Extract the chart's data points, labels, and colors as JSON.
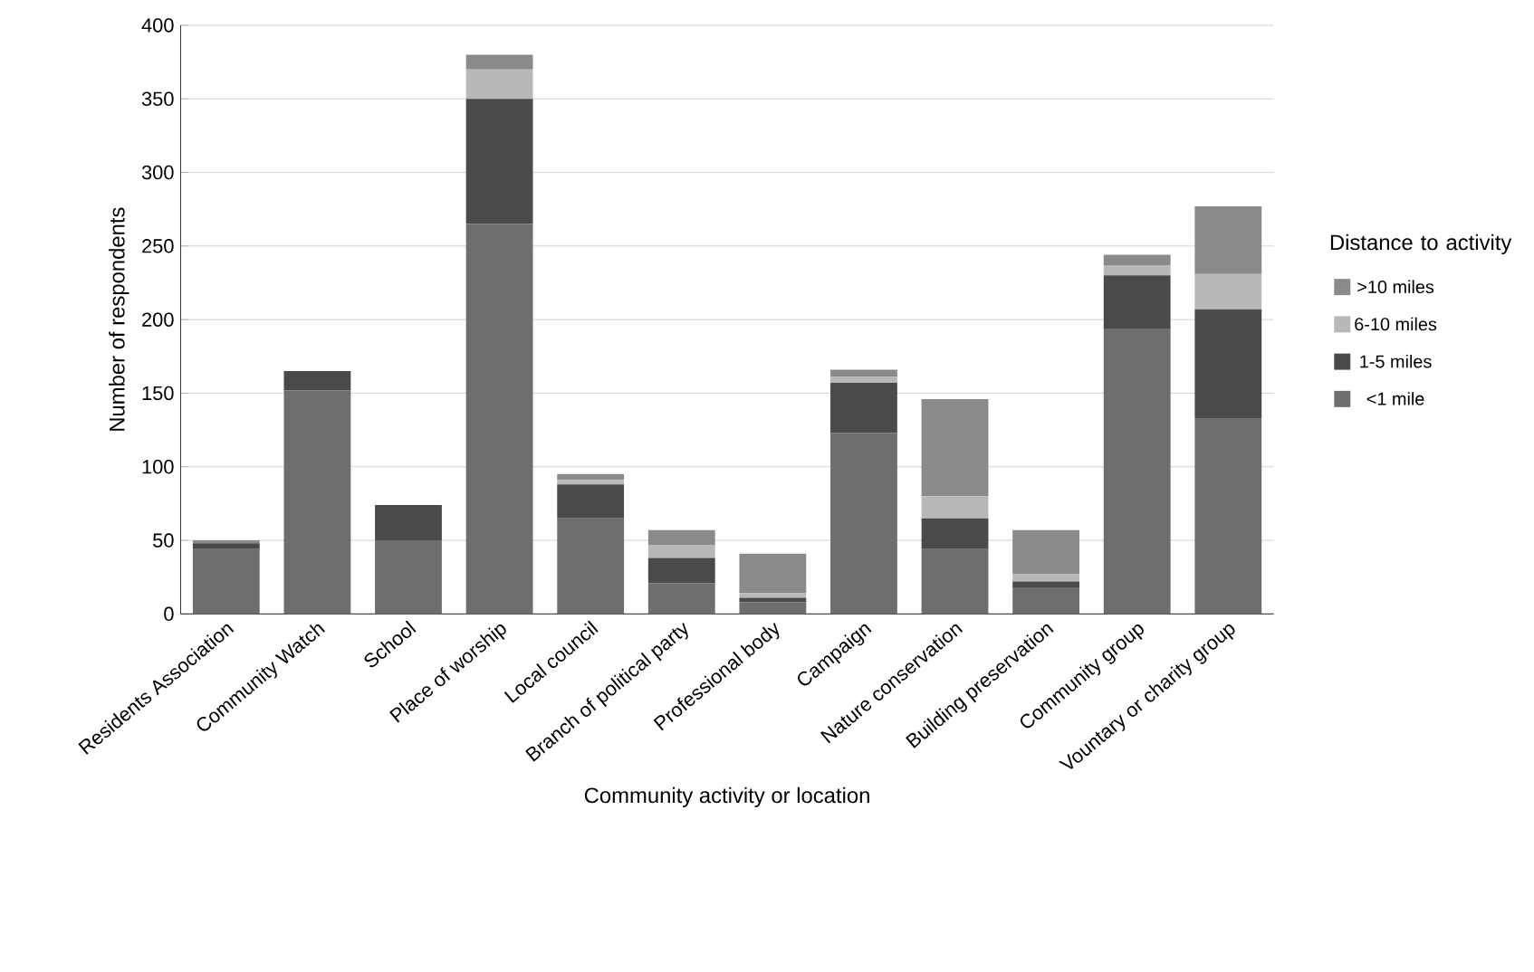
{
  "chart_data": {
    "type": "bar",
    "stacked": true,
    "xlabel": "Community activity or location",
    "ylabel": "Number of respondents",
    "legend_title": "Distance to activity",
    "categories": [
      "Residents Association",
      "Community Watch",
      "School",
      "Place of worship",
      "Local council",
      "Branch of political party",
      "Professional body",
      "Campaign",
      "Nature conservation",
      "Building preservation",
      "Community group",
      "Vountary or charity group"
    ],
    "series": [
      {
        "name": "<1 mile",
        "color": "#6d6e70",
        "values": [
          44,
          152,
          50,
          265,
          65,
          21,
          8,
          123,
          44,
          18,
          194,
          133
        ]
      },
      {
        "name": "1-5 miles",
        "color": "#4a4a4c",
        "values": [
          4,
          13,
          24,
          85,
          23,
          17,
          3,
          34,
          21,
          4,
          36,
          74
        ]
      },
      {
        "name": "6-10 miles",
        "color": "#b8b8b8",
        "values": [
          0,
          0,
          0,
          20,
          3,
          9,
          3,
          4,
          15,
          5,
          7,
          24
        ]
      },
      {
        "name": ">10 miles",
        "color": "#8a8a8a",
        "values": [
          2,
          0,
          0,
          10,
          4,
          10,
          27,
          5,
          66,
          30,
          7,
          46
        ]
      }
    ],
    "ylim": [
      0,
      400
    ],
    "yticks": [
      0,
      50,
      100,
      150,
      200,
      250,
      300,
      350,
      400
    ],
    "grid": "y",
    "legend": "right"
  }
}
